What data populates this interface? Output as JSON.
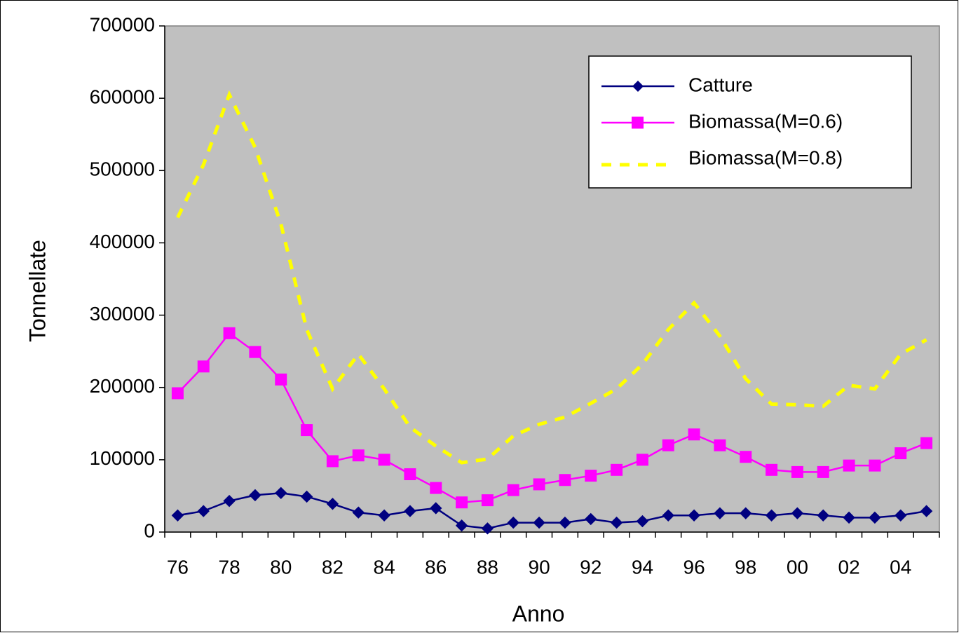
{
  "chart_data": {
    "type": "line",
    "xlabel": "Anno",
    "ylabel": "Tonnellate",
    "categories": [
      "76",
      null,
      "78",
      null,
      "80",
      null,
      "82",
      null,
      "84",
      null,
      "86",
      null,
      "88",
      null,
      "90",
      null,
      "92",
      null,
      "94",
      null,
      "96",
      null,
      "98",
      null,
      "00",
      null,
      "02",
      null,
      "04",
      null
    ],
    "series": [
      {
        "name": "Catture",
        "color": "#000080",
        "marker": "diamond",
        "line_style": "solid",
        "values": [
          23000,
          29000,
          43000,
          51000,
          54000,
          49000,
          39000,
          27000,
          23000,
          29000,
          33000,
          9000,
          5000,
          13000,
          13000,
          13000,
          18000,
          13000,
          15000,
          23000,
          23000,
          26000,
          26000,
          23000,
          26000,
          23000,
          20000,
          20000,
          23000,
          29000
        ]
      },
      {
        "name": "Biomassa(M=0.6)",
        "color": "#ff00ff",
        "marker": "square",
        "line_style": "solid",
        "values": [
          192000,
          229000,
          275000,
          249000,
          211000,
          141000,
          98000,
          106000,
          100000,
          80000,
          61000,
          41000,
          44000,
          58000,
          66000,
          72000,
          78000,
          86000,
          100000,
          120000,
          135000,
          120000,
          104000,
          86000,
          83000,
          83000,
          92000,
          92000,
          109000,
          123000
        ]
      },
      {
        "name": "Biomassa(M=0.8)",
        "color": "#ffff00",
        "marker": "none",
        "line_style": "dashed",
        "values": [
          435000,
          508000,
          605000,
          532000,
          426000,
          280000,
          198000,
          246000,
          198000,
          145000,
          119000,
          96000,
          101000,
          133000,
          149000,
          159000,
          178000,
          198000,
          232000,
          280000,
          317000,
          271000,
          212000,
          177000,
          176000,
          174000,
          203000,
          198000,
          246000,
          266000
        ]
      }
    ],
    "ylim": [
      0,
      700000
    ],
    "yticks": [
      0,
      100000,
      200000,
      300000,
      400000,
      500000,
      600000,
      700000
    ],
    "plot_background": "#c0c0c0",
    "legend": "upper right"
  }
}
